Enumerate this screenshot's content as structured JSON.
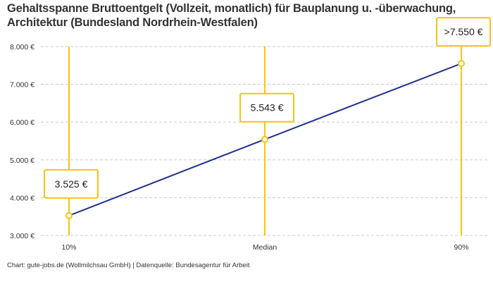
{
  "chart_data": {
    "type": "line",
    "title": "Gehaltsspanne Bruttoentgelt (Vollzeit, monatlich) für Bauplanung u. -überwachung, Architektur (Bundesland Nordrhein-Westfalen)",
    "categories": [
      "10%",
      "Median",
      "90%"
    ],
    "values": [
      3525,
      5543,
      7550
    ],
    "data_labels": [
      "3.525 €",
      "5.543 €",
      ">7.550 €"
    ],
    "ylim": [
      3000,
      8000
    ],
    "yticks": [
      3000,
      4000,
      5000,
      6000,
      7000,
      8000
    ],
    "ytick_labels": [
      "3.000 €",
      "4.000 €",
      "5.000 €",
      "6.000 €",
      "7.000 €",
      "8.000 €"
    ],
    "xlabel": "",
    "ylabel": "",
    "grid": "horizontal dashed",
    "colors": {
      "line": "#1f2f8f",
      "accent": "#f7c315",
      "grid": "#cccccc"
    }
  },
  "footer": "Chart: gute-jobs.de (Wollmilchsau GmbH) | Datenquelle: Bundesagentur für Arbeit"
}
